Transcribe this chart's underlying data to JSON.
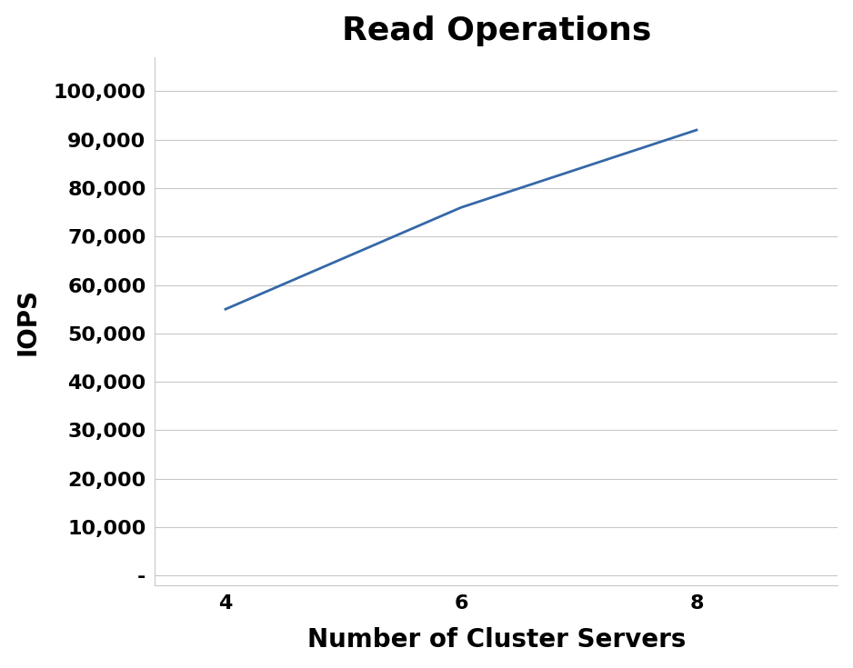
{
  "title": "Read Operations",
  "xlabel": "Number of Cluster Servers",
  "ylabel": "IOPS",
  "x_values": [
    4,
    6,
    8
  ],
  "y_values": [
    55000,
    76000,
    92000
  ],
  "line_color": "#3568a8",
  "line_width": 2.0,
  "x_ticks": [
    4,
    6,
    8
  ],
  "y_ticks": [
    0,
    10000,
    20000,
    30000,
    40000,
    50000,
    60000,
    70000,
    80000,
    90000,
    100000
  ],
  "y_tick_labels": [
    "-",
    "10,000",
    "20,000",
    "30,000",
    "40,000",
    "50,000",
    "60,000",
    "70,000",
    "80,000",
    "90,000",
    "100,000"
  ],
  "ylim": [
    -2000,
    107000
  ],
  "xlim": [
    3.4,
    9.2
  ],
  "title_fontsize": 26,
  "axis_label_fontsize": 20,
  "tick_fontsize": 16,
  "background_color": "#ffffff",
  "grid_color": "#c8c8c8",
  "title_fontweight": "bold",
  "xlabel_fontweight": "bold",
  "ylabel_fontweight": "bold",
  "tick_fontweight": "bold"
}
